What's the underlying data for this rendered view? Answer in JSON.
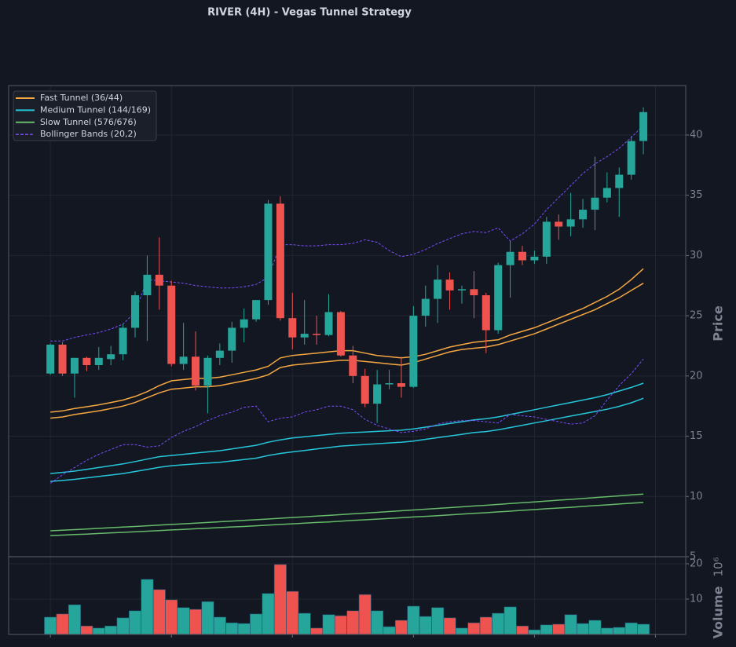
{
  "chart_data": [
    {
      "type": "candlestick",
      "title": "RIVER (4H) - Vegas Tunnel Strategy",
      "ylabel": "Price",
      "up_color": "#26a69a",
      "down_color": "#ef5350",
      "open": [
        20.2,
        22.6,
        20.2,
        21.5,
        20.9,
        21.4,
        21.8,
        24.0,
        26.7,
        28.4,
        27.5,
        21.0,
        21.6,
        19.2,
        21.5,
        22.1,
        24.0,
        24.7,
        26.3,
        34.3,
        24.8,
        23.2,
        23.5,
        23.4,
        25.3,
        21.7,
        20.0,
        17.7,
        19.3,
        19.4,
        19.1,
        25.0,
        26.4,
        28.0,
        27.1,
        27.2,
        26.7,
        23.8,
        29.2,
        30.3,
        29.6,
        29.9,
        32.8,
        32.4,
        33.0,
        33.8,
        34.8,
        35.6,
        36.7,
        39.5
      ],
      "high": [
        22.7,
        22.8,
        21.5,
        21.6,
        22.4,
        22.5,
        24.3,
        27.0,
        30.0,
        31.5,
        27.9,
        24.4,
        23.7,
        21.7,
        22.7,
        24.5,
        25.6,
        26.3,
        34.6,
        34.9,
        26.9,
        26.3,
        25.0,
        26.8,
        25.4,
        22.5,
        20.6,
        20.5,
        20.5,
        21.6,
        25.8,
        27.5,
        29.2,
        28.6,
        27.5,
        28.7,
        26.9,
        29.4,
        31.2,
        30.8,
        30.4,
        33.2,
        33.4,
        35.2,
        34.7,
        38.2,
        36.9,
        37.3,
        39.9,
        42.3
      ],
      "low": [
        20.1,
        20.0,
        18.2,
        20.4,
        20.5,
        20.9,
        21.3,
        23.2,
        22.9,
        25.5,
        20.8,
        20.5,
        18.8,
        16.9,
        20.9,
        21.1,
        22.8,
        24.5,
        25.9,
        24.6,
        22.2,
        22.6,
        22.6,
        23.3,
        21.6,
        19.4,
        17.4,
        16.1,
        18.9,
        18.2,
        19.0,
        24.1,
        24.4,
        25.5,
        26.0,
        24.8,
        21.9,
        23.5,
        26.5,
        29.2,
        29.3,
        29.3,
        31.3,
        31.6,
        32.3,
        32.1,
        34.4,
        33.2,
        36.3,
        38.4
      ],
      "close": [
        22.6,
        20.2,
        21.5,
        20.9,
        21.5,
        21.8,
        24.0,
        26.7,
        28.4,
        27.5,
        21.0,
        21.6,
        19.2,
        21.5,
        22.1,
        24.0,
        24.7,
        26.3,
        34.3,
        24.8,
        23.2,
        23.5,
        23.4,
        25.3,
        21.7,
        20.0,
        17.7,
        19.3,
        19.4,
        19.1,
        25.0,
        26.4,
        28.0,
        27.1,
        27.2,
        26.7,
        23.8,
        29.2,
        30.3,
        29.6,
        29.9,
        32.8,
        32.4,
        33.0,
        33.8,
        34.8,
        35.6,
        36.7,
        39.5,
        41.9
      ],
      "overlays": [
        {
          "name": "Fast Tunnel (36/44)",
          "color": "#f5a742",
          "dashed": false,
          "lines": [
            [
              17.0,
              17.1,
              17.3,
              17.45,
              17.6,
              17.8,
              18.0,
              18.3,
              18.7,
              19.2,
              19.6,
              19.7,
              19.8,
              19.8,
              19.9,
              20.1,
              20.3,
              20.5,
              20.8,
              21.5,
              21.7,
              21.8,
              21.9,
              22.0,
              22.1,
              22.1,
              21.9,
              21.7,
              21.6,
              21.5,
              21.6,
              21.8,
              22.1,
              22.4,
              22.6,
              22.8,
              22.9,
              23.0,
              23.4,
              23.7,
              24.0,
              24.4,
              24.8,
              25.2,
              25.6,
              26.1,
              26.6,
              27.2,
              28.0,
              28.9
            ],
            [
              16.5,
              16.6,
              16.8,
              16.95,
              17.1,
              17.3,
              17.5,
              17.8,
              18.2,
              18.6,
              18.9,
              19.0,
              19.1,
              19.1,
              19.2,
              19.4,
              19.6,
              19.8,
              20.1,
              20.7,
              20.9,
              21.0,
              21.1,
              21.2,
              21.3,
              21.3,
              21.2,
              21.1,
              21.0,
              20.9,
              21.1,
              21.4,
              21.7,
              22.0,
              22.2,
              22.3,
              22.4,
              22.6,
              22.9,
              23.2,
              23.5,
              23.9,
              24.3,
              24.7,
              25.1,
              25.5,
              26.0,
              26.5,
              27.1,
              27.7
            ]
          ]
        },
        {
          "name": "Medium Tunnel (144/169)",
          "color": "#26c6da",
          "dashed": false,
          "lines": [
            [
              11.9,
              12.0,
              12.1,
              12.25,
              12.4,
              12.55,
              12.7,
              12.9,
              13.1,
              13.3,
              13.4,
              13.5,
              13.6,
              13.7,
              13.8,
              13.95,
              14.1,
              14.25,
              14.5,
              14.7,
              14.85,
              14.95,
              15.05,
              15.15,
              15.25,
              15.3,
              15.35,
              15.4,
              15.45,
              15.5,
              15.6,
              15.75,
              15.9,
              16.05,
              16.2,
              16.35,
              16.45,
              16.6,
              16.8,
              17.0,
              17.2,
              17.4,
              17.6,
              17.8,
              18.0,
              18.2,
              18.45,
              18.75,
              19.05,
              19.4
            ],
            [
              11.25,
              11.33,
              11.42,
              11.54,
              11.66,
              11.78,
              11.9,
              12.07,
              12.24,
              12.42,
              12.55,
              12.63,
              12.7,
              12.77,
              12.84,
              12.95,
              13.07,
              13.18,
              13.4,
              13.57,
              13.7,
              13.82,
              13.94,
              14.06,
              14.18,
              14.25,
              14.31,
              14.38,
              14.44,
              14.5,
              14.6,
              14.74,
              14.88,
              15.02,
              15.16,
              15.3,
              15.39,
              15.53,
              15.72,
              15.91,
              16.1,
              16.29,
              16.48,
              16.67,
              16.86,
              17.05,
              17.24,
              17.48,
              17.77,
              18.15
            ]
          ]
        },
        {
          "name": "Slow Tunnel (576/676)",
          "color": "#66bb6a",
          "dashed": false,
          "lines": [
            [
              7.15,
              7.2,
              7.25,
              7.3,
              7.35,
              7.41,
              7.46,
              7.51,
              7.57,
              7.62,
              7.68,
              7.73,
              7.79,
              7.84,
              7.9,
              7.96,
              8.01,
              8.07,
              8.13,
              8.19,
              8.25,
              8.31,
              8.37,
              8.43,
              8.49,
              8.56,
              8.62,
              8.68,
              8.75,
              8.81,
              8.88,
              8.94,
              9.01,
              9.07,
              9.14,
              9.21,
              9.27,
              9.34,
              9.41,
              9.48,
              9.55,
              9.62,
              9.69,
              9.76,
              9.83,
              9.91,
              9.98,
              10.05,
              10.13,
              10.2
            ],
            [
              6.75,
              6.79,
              6.84,
              6.88,
              6.93,
              6.98,
              7.02,
              7.07,
              7.12,
              7.17,
              7.22,
              7.26,
              7.32,
              7.36,
              7.42,
              7.47,
              7.51,
              7.57,
              7.62,
              7.68,
              7.73,
              7.78,
              7.84,
              7.89,
              7.95,
              8.01,
              8.06,
              8.12,
              8.18,
              8.23,
              8.3,
              8.35,
              8.41,
              8.47,
              8.53,
              8.6,
              8.65,
              8.72,
              8.78,
              8.85,
              8.91,
              8.98,
              9.04,
              9.1,
              9.17,
              9.24,
              9.3,
              9.37,
              9.44,
              9.5
            ]
          ]
        },
        {
          "name": "Bollinger Bands (20,2)",
          "color": "#7c4dff",
          "dashed": true,
          "lines": [
            [
              22.9,
              22.9,
              23.2,
              23.4,
              23.6,
              23.9,
              24.3,
              25.3,
              28.0,
              27.9,
              27.8,
              27.7,
              27.5,
              27.4,
              27.3,
              27.3,
              27.4,
              27.6,
              28.2,
              30.9,
              30.9,
              30.8,
              30.8,
              30.9,
              30.9,
              31.0,
              31.3,
              31.1,
              30.4,
              29.9,
              30.1,
              30.5,
              31.0,
              31.4,
              31.8,
              32.0,
              31.9,
              32.3,
              31.2,
              31.8,
              32.6,
              33.8,
              34.8,
              35.8,
              36.8,
              37.6,
              38.2,
              38.9,
              39.8,
              40.8
            ],
            [
              11.1,
              11.8,
              12.4,
              13.0,
              13.5,
              13.9,
              14.3,
              14.3,
              14.1,
              14.2,
              14.9,
              15.4,
              15.8,
              16.3,
              16.7,
              17.0,
              17.4,
              17.5,
              16.2,
              16.5,
              16.6,
              17.0,
              17.2,
              17.5,
              17.5,
              17.2,
              16.4,
              15.9,
              15.6,
              15.3,
              15.4,
              15.6,
              16.0,
              16.2,
              16.3,
              16.3,
              16.2,
              16.1,
              16.8,
              16.7,
              16.6,
              16.4,
              16.2,
              16.0,
              16.1,
              16.7,
              18.0,
              19.2,
              20.2,
              21.4
            ]
          ]
        }
      ],
      "ylim": [
        5,
        44.1
      ],
      "yticks": [
        5,
        10,
        15,
        20,
        25,
        30,
        35,
        40
      ],
      "xlim": [
        -3.45,
        52.5
      ],
      "xticks": [
        0,
        10,
        20,
        30,
        40,
        50
      ],
      "grid": true,
      "legend": "upper left"
    },
    {
      "type": "bar",
      "ylabel": "Volume",
      "yoffset": "10⁶",
      "values": [
        4.9,
        5.8,
        8.4,
        2.4,
        1.8,
        2.4,
        4.7,
        6.7,
        15.6,
        12.7,
        9.8,
        7.6,
        7.1,
        9.3,
        4.9,
        3.3,
        3.1,
        5.8,
        11.6,
        19.8,
        12.2,
        6.0,
        1.8,
        5.6,
        5.3,
        6.7,
        11.3,
        6.7,
        2.2,
        4.0,
        8.0,
        5.1,
        7.6,
        4.7,
        1.8,
        3.3,
        4.9,
        6.0,
        7.8,
        2.4,
        1.3,
        2.7,
        2.9,
        5.6,
        3.1,
        4.0,
        1.8,
        2.0,
        3.3,
        2.9
      ],
      "ylim": [
        0,
        22
      ],
      "yticks": [
        10,
        20
      ],
      "xlim": [
        -3.45,
        52.5
      ],
      "xticks": [
        0,
        10,
        20,
        30,
        40,
        50
      ],
      "grid": true
    }
  ]
}
